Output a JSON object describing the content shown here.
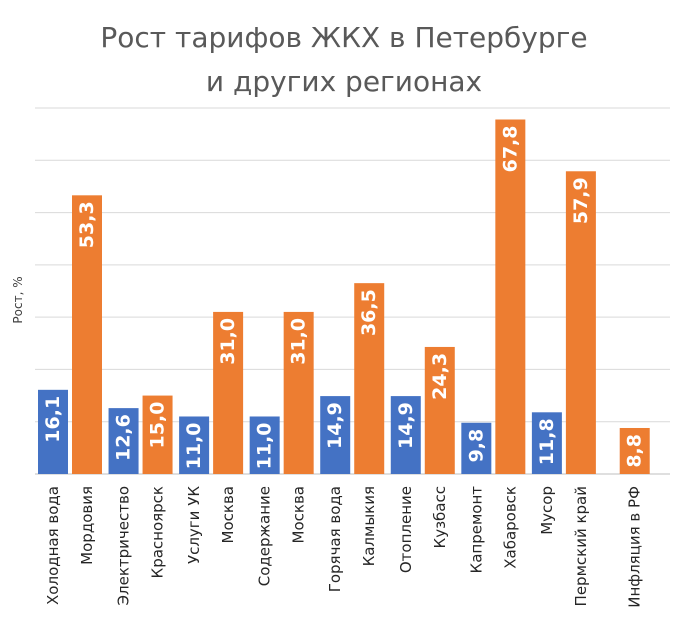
{
  "chart_data": {
    "type": "bar",
    "title_line1": "Рост тарифов ЖКХ в Петербурге",
    "title_line2": "и других регионах",
    "ylabel": "Рост, %",
    "ylim": [
      0,
      70
    ],
    "y_grid_step": 10,
    "grid": true,
    "tick_labels_visible": false,
    "colors": {
      "spb": "#4472c4",
      "region": "#ed7d31"
    },
    "groups": [
      {
        "spb_label": "Холодная вода",
        "spb_value": 16.1,
        "spb_value_label": "16,1",
        "region_label": "Мордовия",
        "region_value": 53.3,
        "region_value_label": "53,3"
      },
      {
        "spb_label": "Электричество",
        "spb_value": 12.6,
        "spb_value_label": "12,6",
        "region_label": "Красноярск",
        "region_value": 15.0,
        "region_value_label": "15,0"
      },
      {
        "spb_label": "Услуги УК",
        "spb_value": 11.0,
        "spb_value_label": "11,0",
        "region_label": "Москва",
        "region_value": 31.0,
        "region_value_label": "31,0"
      },
      {
        "spb_label": "Содержание",
        "spb_value": 11.0,
        "spb_value_label": "11,0",
        "region_label": "Москва",
        "region_value": 31.0,
        "region_value_label": "31,0"
      },
      {
        "spb_label": "Горячая вода",
        "spb_value": 14.9,
        "spb_value_label": "14,9",
        "region_label": "Калмыкия",
        "region_value": 36.5,
        "region_value_label": "36,5"
      },
      {
        "spb_label": "Отопление",
        "spb_value": 14.9,
        "spb_value_label": "14,9",
        "region_label": "Кузбасс",
        "region_value": 24.3,
        "region_value_label": "24,3"
      },
      {
        "spb_label": "Капремонт",
        "spb_value": 9.8,
        "spb_value_label": "9,8",
        "region_label": "Хабаровск",
        "region_value": 67.8,
        "region_value_label": "67,8"
      },
      {
        "spb_label": "Мусор",
        "spb_value": 11.8,
        "spb_value_label": "11,8",
        "region_label": "Пермский край",
        "region_value": 57.9,
        "region_value_label": "57,9"
      },
      {
        "spb_label": null,
        "spb_value": null,
        "spb_value_label": null,
        "region_label": "Инфляция в РФ",
        "region_value": 8.8,
        "region_value_label": "8,8"
      }
    ]
  }
}
